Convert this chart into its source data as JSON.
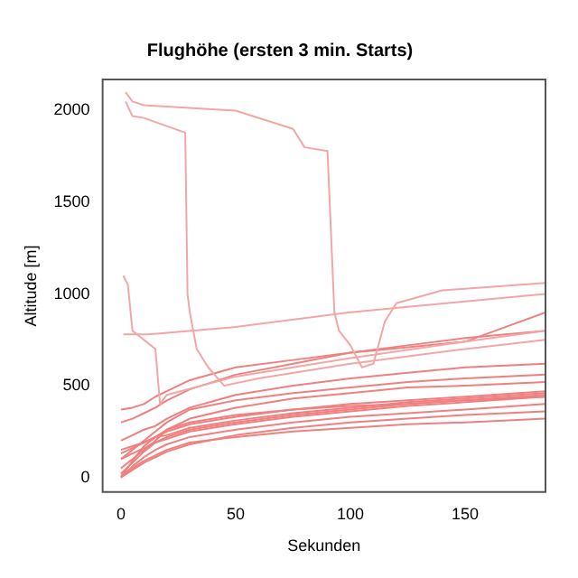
{
  "chart_data": {
    "type": "line",
    "title": "Flughöhe (ersten 3 min. Starts)",
    "xlabel": "Sekunden",
    "ylabel": "Altitude [m]",
    "xlim": [
      -8,
      185
    ],
    "ylim": [
      -80,
      2170
    ],
    "xticks": [
      0,
      50,
      100,
      150
    ],
    "yticks": [
      0,
      500,
      1000,
      1500,
      2000
    ],
    "grid": false,
    "legend": false,
    "marker": "none",
    "line_style": "solid",
    "series": [
      {
        "color": "#f4a6a6",
        "x": [
          2,
          5,
          10,
          50,
          75,
          80,
          90,
          93,
          95,
          100,
          105,
          110,
          115,
          120,
          140,
          185
        ],
        "values": [
          2100,
          2050,
          2030,
          2000,
          1900,
          1800,
          1780,
          900,
          800,
          720,
          600,
          620,
          850,
          950,
          1020,
          1060
        ]
      },
      {
        "color": "#f4a6a6",
        "x": [
          2,
          5,
          10,
          28,
          29,
          30,
          33,
          38,
          45,
          60,
          100,
          150,
          185
        ],
        "values": [
          2050,
          1970,
          1960,
          1880,
          1000,
          900,
          700,
          600,
          500,
          540,
          620,
          700,
          750
        ]
      },
      {
        "color": "#f4a6a6",
        "x": [
          1,
          3,
          5,
          15,
          17,
          20,
          50,
          100,
          150,
          185
        ],
        "values": [
          1100,
          1050,
          800,
          700,
          400,
          450,
          550,
          650,
          740,
          800
        ]
      },
      {
        "color": "#f4a6a6",
        "x": [
          1,
          12,
          50,
          100,
          150,
          185
        ],
        "values": [
          780,
          780,
          820,
          900,
          960,
          1000
        ]
      },
      {
        "color": "#f08080",
        "x": [
          0,
          5,
          10,
          15,
          20,
          30,
          50,
          75,
          100,
          125,
          150,
          185
        ],
        "values": [
          0,
          60,
          110,
          150,
          180,
          220,
          260,
          300,
          330,
          350,
          370,
          400
        ]
      },
      {
        "color": "#f08080",
        "x": [
          0,
          5,
          10,
          15,
          20,
          30,
          50,
          75,
          100,
          125,
          150,
          185
        ],
        "values": [
          100,
          130,
          160,
          190,
          210,
          250,
          290,
          330,
          360,
          390,
          410,
          440
        ]
      },
      {
        "color": "#f08080",
        "x": [
          0,
          5,
          10,
          15,
          20,
          30,
          50,
          75,
          100,
          125,
          150,
          185
        ],
        "values": [
          20,
          80,
          140,
          190,
          220,
          260,
          300,
          340,
          370,
          400,
          420,
          450
        ]
      },
      {
        "color": "#f08080",
        "x": [
          0,
          5,
          10,
          15,
          20,
          30,
          50,
          75,
          100,
          125,
          150,
          185
        ],
        "values": [
          0,
          40,
          80,
          110,
          140,
          180,
          230,
          270,
          300,
          320,
          340,
          360
        ]
      },
      {
        "color": "#f08080",
        "x": [
          0,
          5,
          10,
          15,
          20,
          30,
          50,
          75,
          100,
          125,
          150,
          185
        ],
        "values": [
          10,
          50,
          90,
          120,
          150,
          190,
          220,
          250,
          270,
          290,
          300,
          320
        ]
      },
      {
        "color": "#f08080",
        "x": [
          0,
          5,
          10,
          15,
          20,
          30,
          50,
          75,
          100,
          125,
          150,
          185
        ],
        "values": [
          150,
          170,
          190,
          220,
          250,
          290,
          330,
          370,
          400,
          420,
          440,
          470
        ]
      },
      {
        "color": "#f08080",
        "x": [
          0,
          5,
          10,
          15,
          20,
          30,
          50,
          75,
          100,
          125,
          150,
          185
        ],
        "values": [
          50,
          100,
          150,
          200,
          260,
          320,
          380,
          430,
          460,
          490,
          500,
          520
        ]
      },
      {
        "color": "#f08080",
        "x": [
          0,
          5,
          10,
          15,
          20,
          30,
          50,
          75,
          100,
          125,
          150,
          185
        ],
        "values": [
          100,
          150,
          200,
          250,
          300,
          370,
          420,
          460,
          490,
          520,
          540,
          560
        ]
      },
      {
        "color": "#f08080",
        "x": [
          0,
          5,
          10,
          15,
          20,
          30,
          50,
          75,
          100,
          125,
          150,
          185
        ],
        "values": [
          200,
          230,
          260,
          280,
          320,
          380,
          450,
          500,
          540,
          570,
          600,
          620
        ]
      },
      {
        "color": "#f08080",
        "x": [
          0,
          5,
          10,
          15,
          20,
          30,
          50,
          75,
          100,
          125,
          150,
          185
        ],
        "values": [
          0,
          90,
          170,
          220,
          260,
          300,
          340,
          370,
          390,
          400,
          420,
          440
        ]
      },
      {
        "color": "#f08080",
        "x": [
          0,
          5,
          10,
          15,
          20,
          30,
          50,
          75,
          100,
          125,
          150,
          185
        ],
        "values": [
          130,
          160,
          190,
          220,
          230,
          270,
          310,
          350,
          380,
          410,
          430,
          460
        ]
      },
      {
        "color": "#f08080",
        "x": [
          0,
          5,
          10,
          15,
          20,
          30,
          50,
          75,
          100,
          125,
          150,
          185
        ],
        "values": [
          300,
          320,
          350,
          380,
          420,
          480,
          560,
          620,
          680,
          720,
          760,
          800
        ]
      },
      {
        "color": "#f08080",
        "x": [
          0,
          5,
          10,
          15,
          20,
          30,
          50,
          75,
          100,
          125,
          150,
          185
        ],
        "values": [
          370,
          380,
          400,
          440,
          470,
          530,
          600,
          640,
          680,
          710,
          740,
          900
        ]
      }
    ]
  }
}
